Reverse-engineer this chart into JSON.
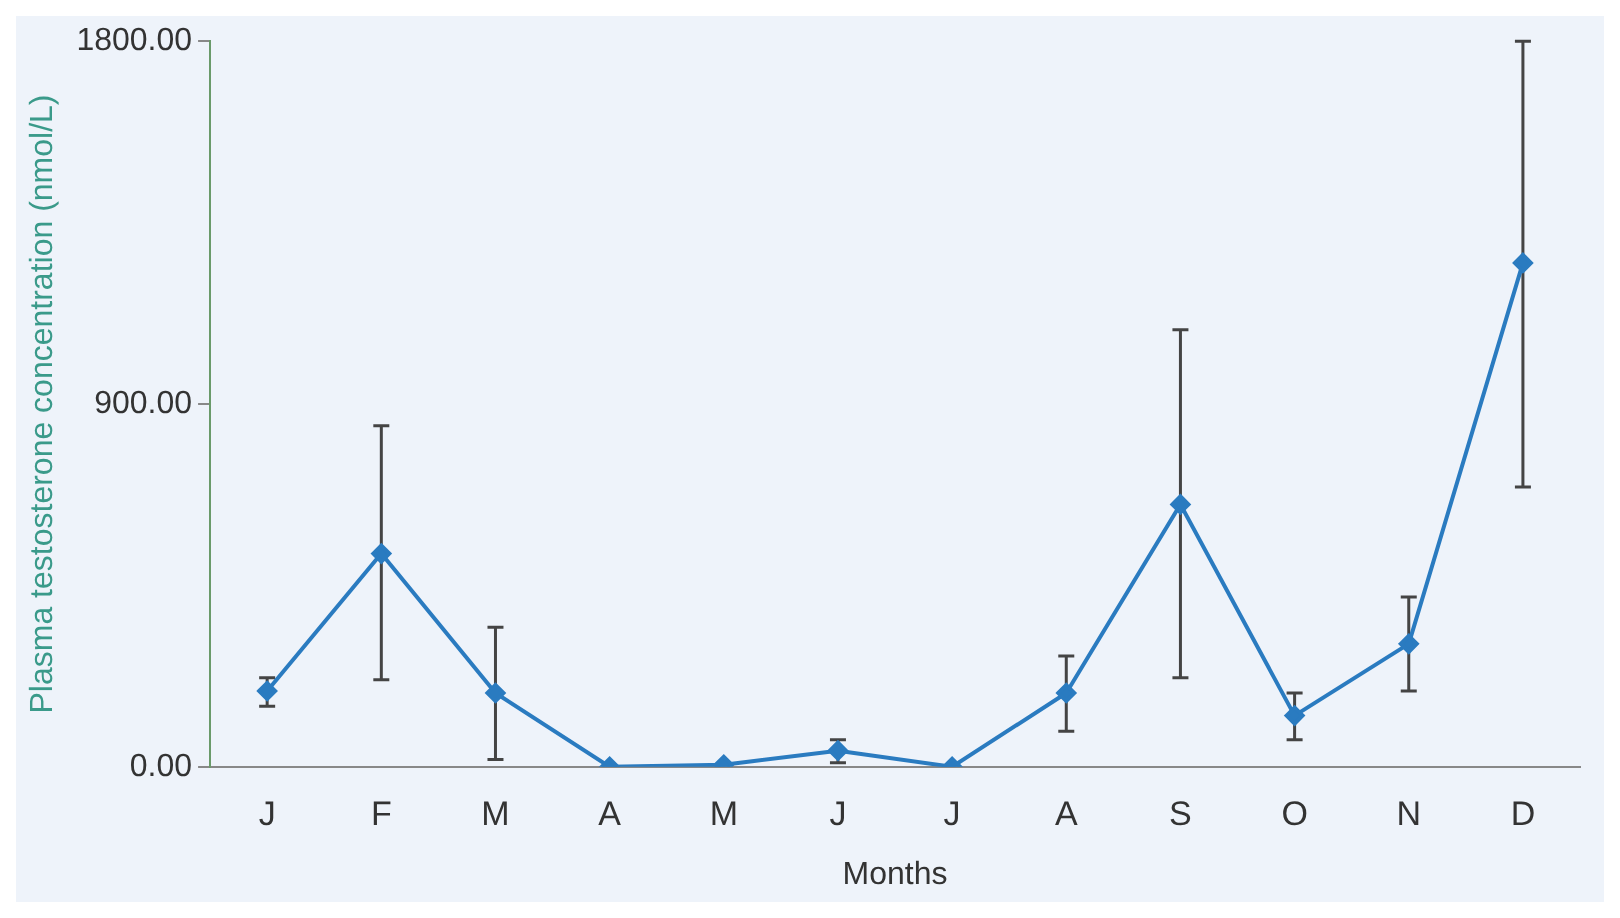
{
  "chart_data": {
    "type": "line",
    "xlabel": "Months",
    "ylabel": "Plasma testosterone concentration (nmol/L)",
    "categories": [
      "J",
      "F",
      "M",
      "A",
      "M",
      "J",
      "J",
      "A",
      "S",
      "O",
      "N",
      "D"
    ],
    "series": [
      {
        "color": "#2a7bc0",
        "values": [
          188,
          529,
          183,
          0,
          5,
          40,
          0,
          183,
          651,
          127,
          305,
          1250
        ],
        "errors": [
          [
            150,
            221
          ],
          [
            216,
            846
          ],
          [
            18,
            346
          ],
          null,
          null,
          [
            10,
            67
          ],
          null,
          [
            88,
            275
          ],
          [
            221,
            1084
          ],
          [
            67,
            183
          ],
          [
            188,
            421
          ],
          [
            694,
            1800
          ]
        ]
      }
    ],
    "ylim": [
      0,
      1800
    ],
    "yticks": [
      {
        "value": 0,
        "label": "0.00"
      },
      {
        "value": 900,
        "label": "900.00"
      },
      {
        "value": 1800,
        "label": "1800.00"
      }
    ],
    "grid": false,
    "legend": false,
    "marker": "diamond",
    "line_style": "solid"
  }
}
